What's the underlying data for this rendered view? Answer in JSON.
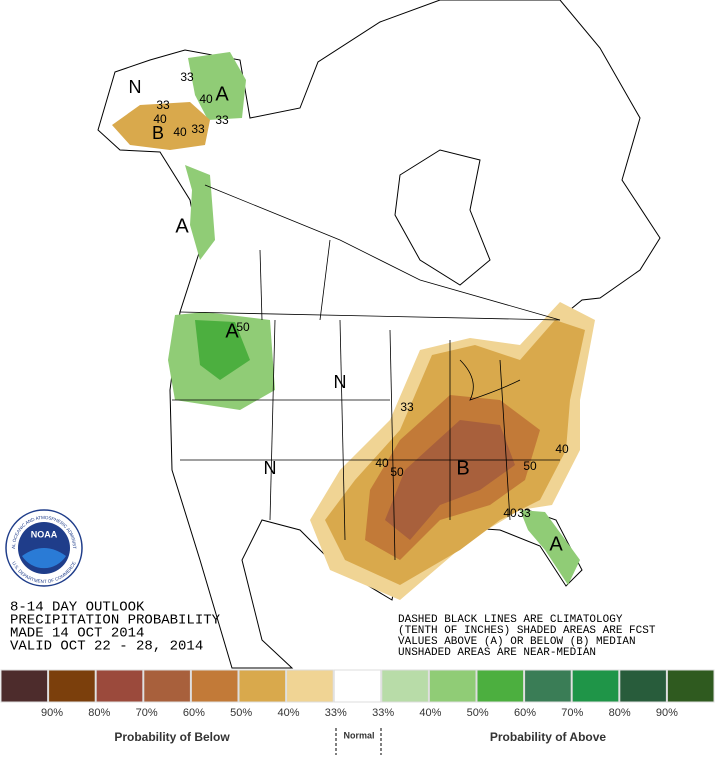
{
  "outlook": {
    "lines": [
      "8-14 DAY OUTLOOK",
      "PRECIPITATION PROBABILITY",
      "MADE  14 OCT 2014",
      "VALID  OCT 22 - 28, 2014"
    ]
  },
  "notes": {
    "lines": [
      "DASHED BLACK LINES ARE CLIMATOLOGY",
      "(TENTH OF INCHES) SHADED AREAS ARE FCST",
      "VALUES ABOVE (A) OR BELOW (B) MEDIAN",
      "UNSHADED AREAS ARE NEAR-MEDIAN"
    ]
  },
  "logo": {
    "name": "NOAA",
    "ring_top": "NATIONAL OCEANIC AND ATMOSPHERIC ADMINISTRATION",
    "ring_bottom": "U.S. DEPARTMENT OF COMMERCE"
  },
  "map_labels": [
    "N",
    "33",
    "A",
    "40",
    "33",
    "40",
    "B",
    "40",
    "33",
    "33",
    "A",
    "A",
    "50",
    "N",
    "33",
    "N",
    "40",
    "50",
    "B",
    "50",
    "40",
    "40",
    "33",
    "A"
  ],
  "legend": {
    "colors": [
      "#4d2c2c",
      "#7b3f0c",
      "#9b4a3c",
      "#a8603c",
      "#c27a38",
      "#d9a94c",
      "#f0d494",
      "#ffffff",
      "#b8dca8",
      "#90cc76",
      "#4caf3f",
      "#3a7d56",
      "#1f9548",
      "#285c3b",
      "#2f5a1f"
    ],
    "labels": [
      "90%",
      "80%",
      "70%",
      "60%",
      "50%",
      "40%",
      "33%",
      "33%",
      "40%",
      "50%",
      "60%",
      "70%",
      "80%",
      "90%"
    ],
    "below": "Probability of Below",
    "normal": "Normal",
    "above": "Probability of Above"
  }
}
